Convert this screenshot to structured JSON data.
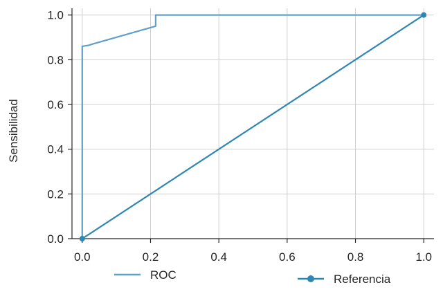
{
  "chart_data": {
    "type": "line",
    "title": "",
    "xlabel": "",
    "ylabel": "Sensibilidad",
    "xlim": [
      -0.03,
      1.03
    ],
    "ylim": [
      0,
      1.03
    ],
    "x_ticks": [
      "0.0",
      "0.2",
      "0.4",
      "0.6",
      "0.8",
      "1.0"
    ],
    "y_ticks": [
      "0.0",
      "0.2",
      "0.4",
      "0.6",
      "0.8",
      "1.0"
    ],
    "x_tick_values": [
      0,
      0.2,
      0.4,
      0.6,
      0.8,
      1.0
    ],
    "y_tick_values": [
      0,
      0.2,
      0.4,
      0.6,
      0.8,
      1.0
    ],
    "grid": true,
    "legend_position": "bottom",
    "series": [
      {
        "name": "ROC",
        "color": "#5fa0c8",
        "marker": "none",
        "x": [
          0,
          0,
          0.02,
          0.03,
          0.215,
          0.215,
          1.0
        ],
        "y": [
          0,
          0.86,
          0.865,
          0.87,
          0.95,
          1.0,
          1.0
        ]
      },
      {
        "name": "Referencia",
        "color": "#2e86b3",
        "marker": "circle",
        "x": [
          0,
          1.0
        ],
        "y": [
          0,
          1.0
        ]
      }
    ]
  }
}
